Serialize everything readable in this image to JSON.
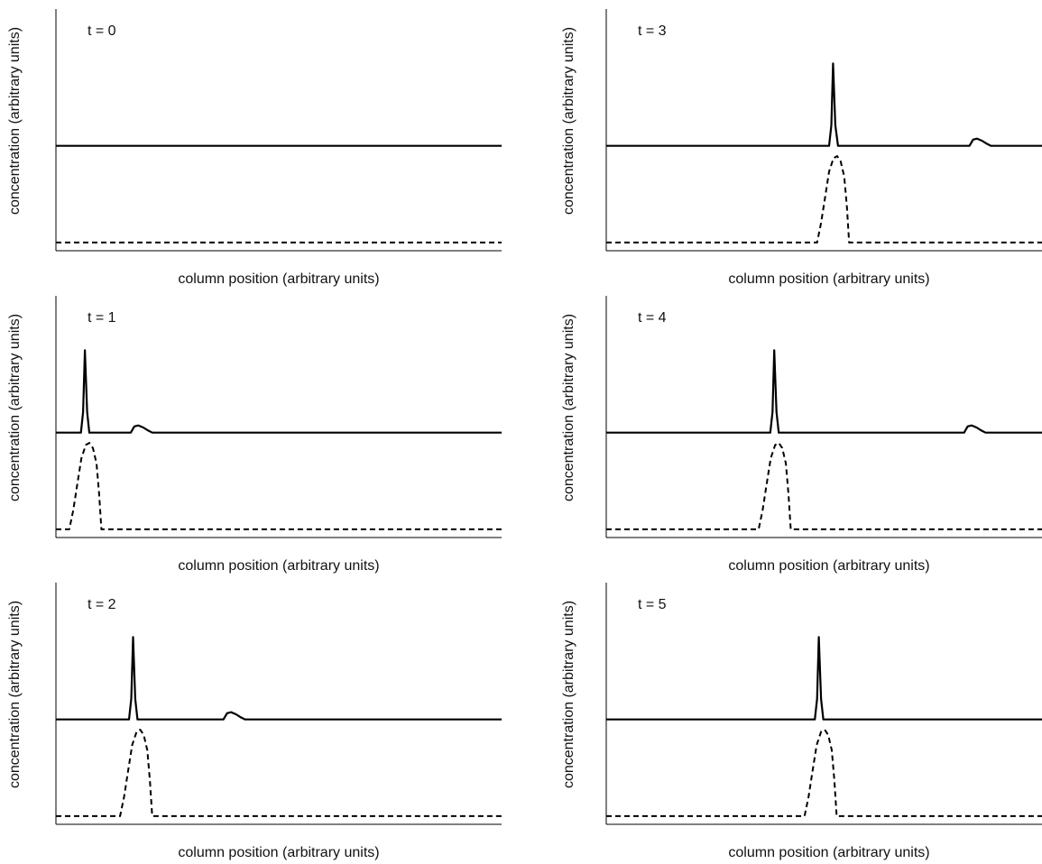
{
  "chart_data": [
    {
      "type": "line",
      "title": "t = 0",
      "xlabel": "column position (arbitrary units)",
      "ylabel": "concentration (arbitrary units)",
      "xlim": [
        0,
        100
      ],
      "grid": false,
      "legend": "none",
      "series": [
        {
          "style": "solid",
          "points": [
            [
              0,
              1.0
            ],
            [
              100,
              1.0
            ]
          ]
        },
        {
          "style": "dashed",
          "points": [
            [
              0,
              0.06
            ],
            [
              100,
              0.06
            ]
          ]
        }
      ]
    },
    {
      "type": "line",
      "title": "t = 3",
      "xlabel": "column position (arbitrary units)",
      "ylabel": "concentration (arbitrary units)",
      "xlim": [
        0,
        100
      ],
      "grid": false,
      "legend": "none",
      "series": [
        {
          "style": "solid",
          "points": [
            [
              0,
              1.0
            ],
            [
              50.0,
              1.0
            ],
            [
              50.5,
              1.2
            ],
            [
              50.9,
              1.8
            ],
            [
              51.4,
              1.2
            ],
            [
              52.0,
              1.0
            ],
            [
              81.5,
              1.0
            ],
            [
              82.3,
              1.06
            ],
            [
              83.2,
              1.07
            ],
            [
              84.3,
              1.05
            ],
            [
              85.4,
              1.02
            ],
            [
              86.3,
              1.0
            ],
            [
              100,
              1.0
            ]
          ]
        },
        {
          "style": "dashed",
          "points": [
            [
              0,
              0.06
            ],
            [
              47.3,
              0.06
            ],
            [
              48.2,
              0.25
            ],
            [
              49.1,
              0.5
            ],
            [
              50.0,
              0.75
            ],
            [
              51.0,
              0.88
            ],
            [
              51.8,
              0.9
            ],
            [
              52.6,
              0.85
            ],
            [
              53.4,
              0.7
            ],
            [
              54.0,
              0.4
            ],
            [
              54.5,
              0.06
            ],
            [
              100,
              0.06
            ]
          ]
        }
      ]
    },
    {
      "type": "line",
      "title": "t = 1",
      "xlabel": "column position (arbitrary units)",
      "ylabel": "concentration (arbitrary units)",
      "xlim": [
        0,
        100
      ],
      "grid": false,
      "legend": "none",
      "series": [
        {
          "style": "solid",
          "points": [
            [
              0,
              1.0
            ],
            [
              5.6,
              1.0
            ],
            [
              6.1,
              1.2
            ],
            [
              6.5,
              1.8
            ],
            [
              7.0,
              1.2
            ],
            [
              7.5,
              1.0
            ],
            [
              16.8,
              1.0
            ],
            [
              17.6,
              1.06
            ],
            [
              18.5,
              1.07
            ],
            [
              19.6,
              1.05
            ],
            [
              20.7,
              1.02
            ],
            [
              21.6,
              1.0
            ],
            [
              100,
              1.0
            ]
          ]
        },
        {
          "style": "dashed",
          "points": [
            [
              0,
              0.06
            ],
            [
              3.0,
              0.06
            ],
            [
              3.9,
              0.25
            ],
            [
              4.8,
              0.5
            ],
            [
              5.7,
              0.75
            ],
            [
              6.7,
              0.88
            ],
            [
              7.5,
              0.9
            ],
            [
              8.3,
              0.85
            ],
            [
              9.1,
              0.7
            ],
            [
              9.7,
              0.4
            ],
            [
              10.2,
              0.06
            ],
            [
              100,
              0.06
            ]
          ]
        }
      ]
    },
    {
      "type": "line",
      "title": "t = 4",
      "xlabel": "column position (arbitrary units)",
      "ylabel": "concentration (arbitrary units)",
      "xlim": [
        0,
        100
      ],
      "grid": false,
      "legend": "none",
      "series": [
        {
          "style": "solid",
          "points": [
            [
              0,
              1.0
            ],
            [
              36.8,
              1.0
            ],
            [
              37.3,
              1.2
            ],
            [
              37.7,
              1.8
            ],
            [
              38.2,
              1.2
            ],
            [
              38.7,
              1.0
            ],
            [
              80.3,
              1.0
            ],
            [
              81.1,
              1.06
            ],
            [
              82.0,
              1.07
            ],
            [
              83.1,
              1.05
            ],
            [
              84.2,
              1.02
            ],
            [
              85.1,
              1.0
            ],
            [
              100,
              1.0
            ]
          ]
        },
        {
          "style": "dashed",
          "points": [
            [
              0,
              0.06
            ],
            [
              34.2,
              0.06
            ],
            [
              35.1,
              0.25
            ],
            [
              36.0,
              0.5
            ],
            [
              36.9,
              0.75
            ],
            [
              37.9,
              0.88
            ],
            [
              38.7,
              0.9
            ],
            [
              39.5,
              0.85
            ],
            [
              40.3,
              0.7
            ],
            [
              40.9,
              0.4
            ],
            [
              41.4,
              0.06
            ],
            [
              100,
              0.06
            ]
          ]
        }
      ]
    },
    {
      "type": "line",
      "title": "t = 2",
      "xlabel": "column position (arbitrary units)",
      "ylabel": "concentration (arbitrary units)",
      "xlim": [
        0,
        100
      ],
      "grid": false,
      "legend": "none",
      "series": [
        {
          "style": "solid",
          "points": [
            [
              0,
              1.0
            ],
            [
              16.4,
              1.0
            ],
            [
              16.9,
              1.2
            ],
            [
              17.3,
              1.8
            ],
            [
              17.8,
              1.2
            ],
            [
              18.3,
              1.0
            ],
            [
              37.6,
              1.0
            ],
            [
              38.4,
              1.06
            ],
            [
              39.3,
              1.07
            ],
            [
              40.4,
              1.05
            ],
            [
              41.5,
              1.02
            ],
            [
              42.4,
              1.0
            ],
            [
              100,
              1.0
            ]
          ]
        },
        {
          "style": "dashed",
          "points": [
            [
              0,
              0.06
            ],
            [
              14.4,
              0.06
            ],
            [
              15.3,
              0.25
            ],
            [
              16.2,
              0.5
            ],
            [
              17.1,
              0.75
            ],
            [
              18.1,
              0.88
            ],
            [
              18.9,
              0.9
            ],
            [
              19.7,
              0.85
            ],
            [
              20.5,
              0.7
            ],
            [
              21.1,
              0.4
            ],
            [
              21.6,
              0.06
            ],
            [
              100,
              0.06
            ]
          ]
        }
      ]
    },
    {
      "type": "line",
      "title": "t = 5",
      "xlabel": "column position (arbitrary units)",
      "ylabel": "concentration (arbitrary units)",
      "xlim": [
        0,
        100
      ],
      "grid": false,
      "legend": "none",
      "series": [
        {
          "style": "solid",
          "points": [
            [
              0,
              1.0
            ],
            [
              46.8,
              1.0
            ],
            [
              47.3,
              1.2
            ],
            [
              47.7,
              1.8
            ],
            [
              48.2,
              1.2
            ],
            [
              48.7,
              1.0
            ],
            [
              100,
              1.0
            ]
          ]
        },
        {
          "style": "dashed",
          "points": [
            [
              0,
              0.06
            ],
            [
              44.5,
              0.06
            ],
            [
              45.4,
              0.25
            ],
            [
              46.3,
              0.5
            ],
            [
              47.2,
              0.75
            ],
            [
              48.2,
              0.88
            ],
            [
              49.0,
              0.9
            ],
            [
              49.8,
              0.85
            ],
            [
              50.6,
              0.7
            ],
            [
              51.2,
              0.4
            ],
            [
              51.7,
              0.06
            ],
            [
              100,
              0.06
            ]
          ]
        }
      ]
    }
  ]
}
